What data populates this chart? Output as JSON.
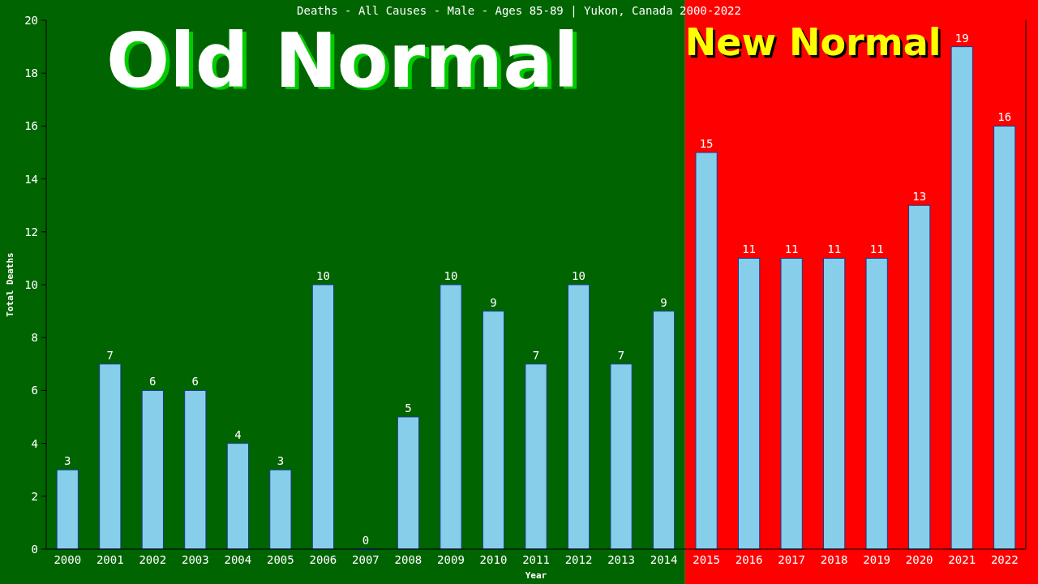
{
  "chart_data": {
    "type": "bar",
    "title": "Deaths - All Causes - Male - Ages 85-89 | Yukon, Canada 2000-2022",
    "xlabel": "Year",
    "ylabel": "Total Deaths",
    "categories": [
      "2000",
      "2001",
      "2002",
      "2003",
      "2004",
      "2005",
      "2006",
      "2007",
      "2008",
      "2009",
      "2010",
      "2011",
      "2012",
      "2013",
      "2014",
      "2015",
      "2016",
      "2017",
      "2018",
      "2019",
      "2020",
      "2021",
      "2022"
    ],
    "values": [
      3,
      7,
      6,
      6,
      4,
      3,
      10,
      0,
      5,
      10,
      9,
      7,
      10,
      7,
      9,
      15,
      11,
      11,
      11,
      11,
      13,
      19,
      16
    ],
    "color": "#87ceeb",
    "data_labels": true,
    "ylim": [
      0,
      20
    ],
    "yticks": [
      0,
      2,
      4,
      6,
      8,
      10,
      12,
      14,
      16,
      18,
      20
    ],
    "grid": false,
    "bands": [
      {
        "axis": "x",
        "from": "2000",
        "to": "2014",
        "label": "Old Normal",
        "color": "#006400"
      },
      {
        "axis": "x",
        "from": "2015",
        "to": "2022",
        "label": "New Normal",
        "color": "#ff0000"
      }
    ]
  }
}
